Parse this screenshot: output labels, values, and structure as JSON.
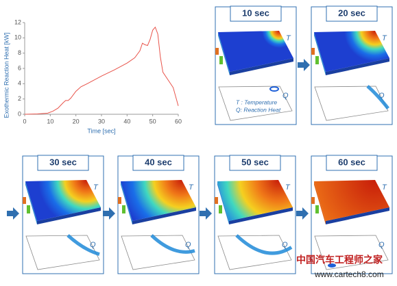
{
  "chart_data": {
    "type": "line",
    "ylabel": "Exothermic Reaction Heat [kW]",
    "xlabel": "Time [sec]",
    "x": [
      0,
      5,
      9,
      11,
      13,
      15,
      16,
      17,
      18,
      20,
      22,
      25,
      30,
      35,
      40,
      43,
      45,
      46,
      47,
      48,
      49,
      50,
      51,
      52,
      53,
      54,
      56,
      58,
      60
    ],
    "series": [
      {
        "name": "Exothermic Reaction Heat",
        "color": "#e8534a",
        "values": [
          0,
          0.05,
          0.15,
          0.4,
          0.8,
          1.5,
          1.8,
          1.8,
          2.1,
          3.0,
          3.6,
          4.1,
          5.0,
          5.8,
          6.7,
          7.4,
          8.3,
          9.3,
          9.1,
          9.0,
          9.8,
          11.0,
          11.4,
          10.5,
          7.5,
          5.5,
          4.5,
          3.5,
          1.1
        ]
      }
    ],
    "xlim": [
      0,
      60
    ],
    "xticks": [
      0,
      10,
      20,
      30,
      40,
      50,
      60
    ],
    "ylim": [
      0,
      12
    ],
    "yticks": [
      0,
      2,
      4,
      6,
      8,
      10,
      12
    ]
  },
  "panels": [
    {
      "label": "10 sec",
      "t_label": "T",
      "q_label": "Q"
    },
    {
      "label": "20 sec",
      "t_label": "T",
      "q_label": "Q"
    },
    {
      "label": "30 sec",
      "t_label": "T",
      "q_label": "Q"
    },
    {
      "label": "40 sec",
      "t_label": "T",
      "q_label": "Q"
    },
    {
      "label": "50 sec",
      "t_label": "T",
      "q_label": "Q"
    },
    {
      "label": "60 sec",
      "t_label": "T",
      "q_label": "Q"
    }
  ],
  "legend": [
    "T : Temperature",
    "Q: Reaction Heat"
  ],
  "watermark": {
    "site_name": "中国汽车工程师之家",
    "url": "www.cartech8.com"
  }
}
